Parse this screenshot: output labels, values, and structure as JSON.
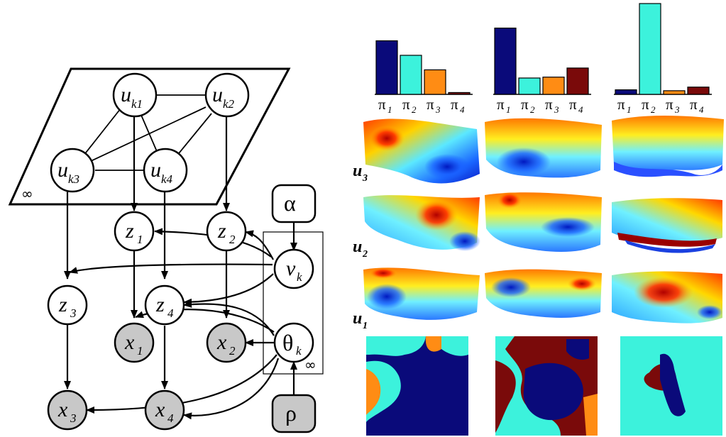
{
  "graph": {
    "plate_symbol": "∞",
    "inner_plate_symbol": "∞",
    "nodes": {
      "uk1": {
        "main": "u",
        "sub": "k1"
      },
      "uk2": {
        "main": "u",
        "sub": "k2"
      },
      "uk3": {
        "main": "u",
        "sub": "k3"
      },
      "uk4": {
        "main": "u",
        "sub": "k4"
      },
      "z1": {
        "main": "z",
        "sub": "1"
      },
      "z2": {
        "main": "z",
        "sub": "2"
      },
      "z3": {
        "main": "z",
        "sub": "3"
      },
      "z4": {
        "main": "z",
        "sub": "4"
      },
      "x1": {
        "main": "x",
        "sub": "1"
      },
      "x2": {
        "main": "x",
        "sub": "2"
      },
      "x3": {
        "main": "x",
        "sub": "3"
      },
      "x4": {
        "main": "x",
        "sub": "4"
      },
      "alpha": {
        "main": "α",
        "sub": ""
      },
      "vk": {
        "main": "v",
        "sub": "k"
      },
      "thetak": {
        "main": "θ",
        "sub": "k"
      },
      "rho": {
        "main": "ρ",
        "sub": ""
      }
    },
    "observed_fill": "#c8c8c8"
  },
  "bars": {
    "labels": [
      {
        "main": "π",
        "sub": "1"
      },
      {
        "main": "π",
        "sub": "2"
      },
      {
        "main": "π",
        "sub": "3"
      },
      {
        "main": "π",
        "sub": "4"
      }
    ],
    "colors": [
      "#0a0a7a",
      "#3cf2dc",
      "#ff8c14",
      "#7a0a0a"
    ],
    "groups": [
      {
        "values": [
          0.59,
          0.43,
          0.27,
          0.02
        ]
      },
      {
        "values": [
          0.73,
          0.18,
          0.19,
          0.29
        ]
      },
      {
        "values": [
          0.05,
          1.0,
          0.04,
          0.08
        ]
      }
    ]
  },
  "surface_rows": [
    {
      "main": "u",
      "sub": "3"
    },
    {
      "main": "u",
      "sub": "2"
    },
    {
      "main": "u",
      "sub": "1"
    }
  ],
  "segmentation_colors": {
    "navy": "#0a0a7a",
    "cyan": "#3cf2dc",
    "orange": "#ff8c14",
    "maroon": "#7a0a0a"
  }
}
